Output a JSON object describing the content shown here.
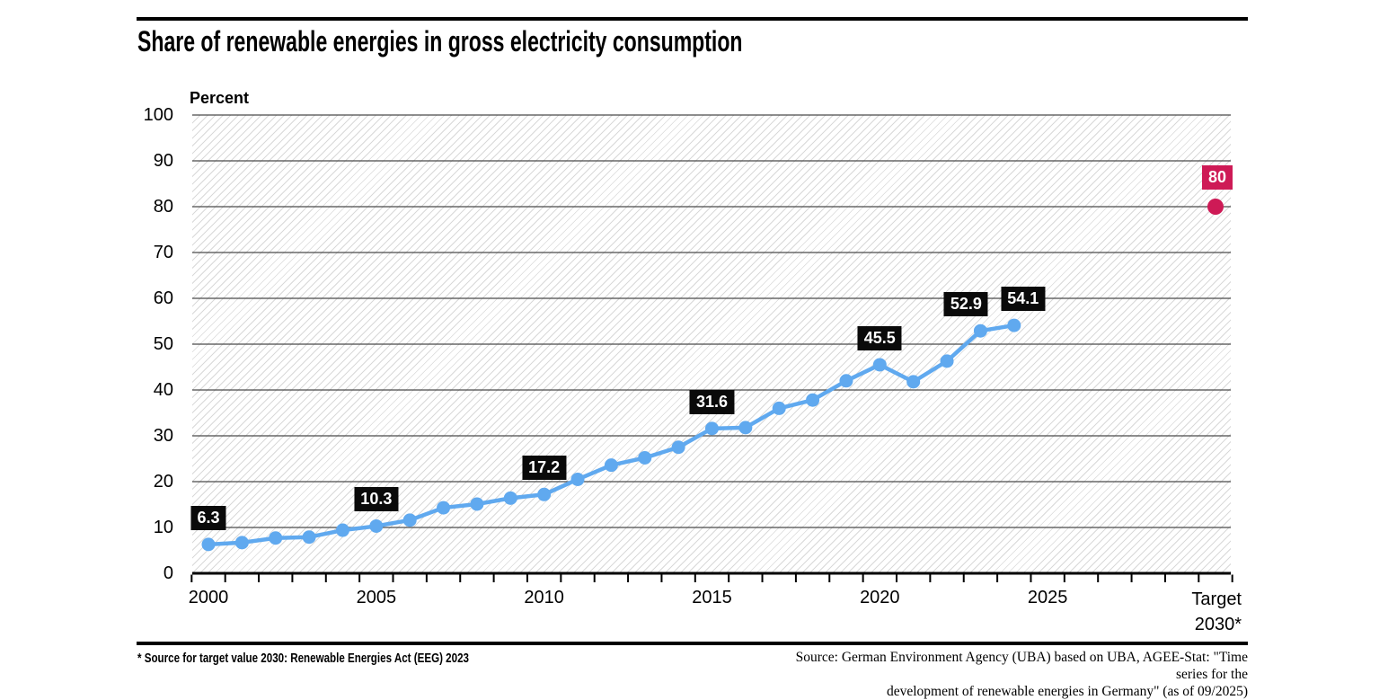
{
  "header": {
    "title": "Share of renewable energies in gross electricity consumption"
  },
  "chart_data": {
    "type": "line",
    "title": "Share of renewable energies in gross electricity consumption",
    "unit_label": "Percent",
    "ylim": [
      0,
      100
    ],
    "grid": true,
    "series": [
      {
        "name": "Share of renewable energies in gross electricity consumption",
        "x": [
          2000,
          2001,
          2002,
          2003,
          2004,
          2005,
          2006,
          2007,
          2008,
          2009,
          2010,
          2011,
          2012,
          2013,
          2014,
          2015,
          2016,
          2017,
          2018,
          2019,
          2020,
          2021,
          2022,
          2023,
          2024
        ],
        "values": [
          6.3,
          6.7,
          7.7,
          7.9,
          9.4,
          10.3,
          11.6,
          14.3,
          15.1,
          16.4,
          17.2,
          20.5,
          23.6,
          25.2,
          27.5,
          31.6,
          31.8,
          36.0,
          37.8,
          42.0,
          45.5,
          41.8,
          46.3,
          52.9,
          54.1
        ]
      }
    ],
    "point_labels": [
      {
        "year": 2000,
        "text": "6.3",
        "dx": 0
      },
      {
        "year": 2005,
        "text": "10.3",
        "dx": 0
      },
      {
        "year": 2010,
        "text": "17.2",
        "dx": 0
      },
      {
        "year": 2015,
        "text": "31.6",
        "dx": 0
      },
      {
        "year": 2020,
        "text": "45.5",
        "dx": 0
      },
      {
        "year": 2023,
        "text": "52.9",
        "dx": -16
      },
      {
        "year": 2024,
        "text": "54.1",
        "dx": 10
      }
    ],
    "target": {
      "year": 2030,
      "value": 80,
      "label": "80",
      "axis_label_line1": "Target",
      "axis_label_line2": "2030*"
    },
    "y_axis": {
      "ticks": [
        0,
        10,
        20,
        30,
        40,
        50,
        60,
        70,
        80,
        90,
        100
      ]
    },
    "x_axis": {
      "tick_labels": [
        2000,
        2005,
        2010,
        2015,
        2020,
        2025
      ],
      "range": [
        2000,
        2030
      ]
    },
    "colors": {
      "line": "#60A9EF",
      "target": "#CE1A56",
      "label_bg": "#0a0a0a",
      "label_text": "#ffffff",
      "grid": "#4a4a4a",
      "hatch": "#d9d9d9",
      "axis": "#000000"
    }
  },
  "footer": {
    "left_note": "* Source for target value 2030: Renewable Energies Act (EEG) 2023",
    "source_line1": "Source: German Environment Agency (UBA) based on UBA, AGEE-Stat: \"Time series for the",
    "source_line2": "development of renewable energies in Germany\" (as of 09/2025)"
  }
}
